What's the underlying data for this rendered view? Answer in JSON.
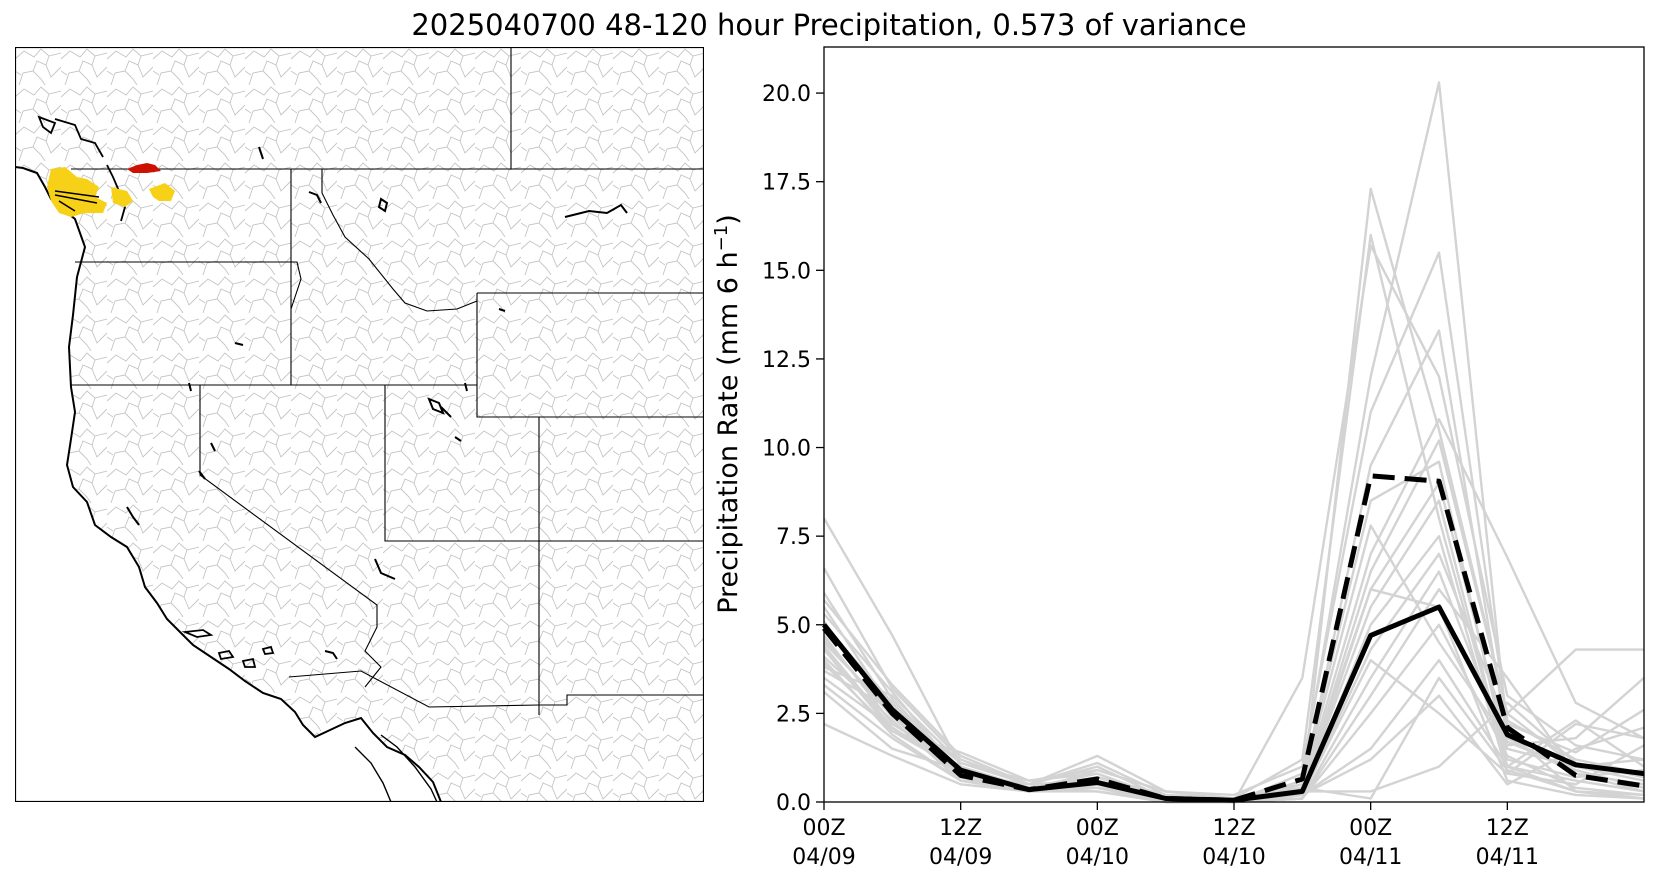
{
  "figure": {
    "title": "2025040700 48-120 hour Precipitation, 0.573 of variance"
  },
  "map": {
    "highlight_colors": {
      "yellow": "#f7d117",
      "red": "#cc1100"
    },
    "state_line_color": "#000000",
    "basin_line_color": "#c0c0c0"
  },
  "chart_data": {
    "type": "line",
    "ylabel": "Precipitation Rate (mm 6 h$^{-1}$)",
    "ylabel_parts": {
      "main": "Precipitation Rate (mm 6 h",
      "sup": "−1",
      "close": ")"
    },
    "xlabel": "",
    "x": [
      0,
      6,
      12,
      18,
      24,
      30,
      36,
      42,
      48,
      54,
      60,
      66,
      72
    ],
    "xlim": [
      0,
      72
    ],
    "ylim": [
      0,
      21.3
    ],
    "xticks": [
      {
        "x": 0,
        "line1": "00Z",
        "line2": "04/09"
      },
      {
        "x": 12,
        "line1": "12Z",
        "line2": "04/09"
      },
      {
        "x": 24,
        "line1": "00Z",
        "line2": "04/10"
      },
      {
        "x": 36,
        "line1": "12Z",
        "line2": "04/10"
      },
      {
        "x": 48,
        "line1": "00Z",
        "line2": "04/11"
      },
      {
        "x": 60,
        "line1": "12Z",
        "line2": "04/11"
      }
    ],
    "yticks": [
      {
        "v": 0,
        "label": "0.0"
      },
      {
        "v": 2.5,
        "label": "2.5"
      },
      {
        "v": 5,
        "label": "5.0"
      },
      {
        "v": 7.5,
        "label": "7.5"
      },
      {
        "v": 10,
        "label": "10.0"
      },
      {
        "v": 12.5,
        "label": "12.5"
      },
      {
        "v": 15,
        "label": "15.0"
      },
      {
        "v": 17.5,
        "label": "17.5"
      },
      {
        "v": 20,
        "label": "20.0"
      }
    ],
    "colors": {
      "members": "#d3d3d3",
      "mean": "#000000",
      "dashed": "#000000"
    },
    "members": [
      [
        8.0,
        4.7,
        1.0,
        0.3,
        0.6,
        0.1,
        0.0,
        0.3,
        17.3,
        10.5,
        2.5,
        1.0,
        0.6
      ],
      [
        6.6,
        3.2,
        1.2,
        0.5,
        1.3,
        0.3,
        0.1,
        1.2,
        16.0,
        8.0,
        1.0,
        0.3,
        0.2
      ],
      [
        5.9,
        2.9,
        0.9,
        0.4,
        0.8,
        0.1,
        0.0,
        3.5,
        15.7,
        12.0,
        3.0,
        1.6,
        1.2
      ],
      [
        5.5,
        2.6,
        1.1,
        0.5,
        1.1,
        0.2,
        0.0,
        0.8,
        12.0,
        20.3,
        2.0,
        0.3,
        0.1
      ],
      [
        5.3,
        3.1,
        0.8,
        0.3,
        0.9,
        0.3,
        0.2,
        1.0,
        11.0,
        15.5,
        2.3,
        1.2,
        0.8
      ],
      [
        5.1,
        2.4,
        0.9,
        0.4,
        0.7,
        0.1,
        0.0,
        0.5,
        9.5,
        13.3,
        1.8,
        0.8,
        0.3
      ],
      [
        4.9,
        2.7,
        0.7,
        0.3,
        0.6,
        0.1,
        0.0,
        0.4,
        7.0,
        10.8,
        6.9,
        2.8,
        1.8
      ],
      [
        4.7,
        2.2,
        1.0,
        0.4,
        0.5,
        0.0,
        0.0,
        0.3,
        6.5,
        10.2,
        2.5,
        4.3,
        4.3
      ],
      [
        4.5,
        2.5,
        0.8,
        0.5,
        0.4,
        0.0,
        0.0,
        0.2,
        6.0,
        9.0,
        1.6,
        1.8,
        3.5
      ],
      [
        4.3,
        2.0,
        1.4,
        0.6,
        0.8,
        0.1,
        0.0,
        0.3,
        5.5,
        8.5,
        1.0,
        2.3,
        1.0
      ],
      [
        4.1,
        2.3,
        0.6,
        0.3,
        0.5,
        0.1,
        0.0,
        0.2,
        5.0,
        7.5,
        0.8,
        0.5,
        1.6
      ],
      [
        3.9,
        2.0,
        0.9,
        0.4,
        0.6,
        0.1,
        0.0,
        0.2,
        4.3,
        7.0,
        2.2,
        1.4,
        2.6
      ],
      [
        3.7,
        2.6,
        0.7,
        0.3,
        0.4,
        0.0,
        0.0,
        0.1,
        3.5,
        6.5,
        1.5,
        1.0,
        1.2
      ],
      [
        3.5,
        2.1,
        0.8,
        0.4,
        0.3,
        0.0,
        0.0,
        0.1,
        3.0,
        6.0,
        3.5,
        0.8,
        0.5
      ],
      [
        3.3,
        1.8,
        0.6,
        0.3,
        0.5,
        0.0,
        0.0,
        0.1,
        2.5,
        5.0,
        1.3,
        0.4,
        0.2
      ],
      [
        3.1,
        1.5,
        0.9,
        0.4,
        0.4,
        0.2,
        0.0,
        0.2,
        1.5,
        4.0,
        1.0,
        0.6,
        0.3
      ],
      [
        2.2,
        1.3,
        0.5,
        0.3,
        0.3,
        0.0,
        0.0,
        0.4,
        0.1,
        3.5,
        0.9,
        0.3,
        0.1
      ],
      [
        5.0,
        2.8,
        0.8,
        0.4,
        0.5,
        0.1,
        0.0,
        0.2,
        4.0,
        2.5,
        0.8,
        2.2,
        1.8
      ],
      [
        4.6,
        2.4,
        0.7,
        0.5,
        0.6,
        0.0,
        0.0,
        0.3,
        0.3,
        1.0,
        2.8,
        1.1,
        0.7
      ],
      [
        3.8,
        3.0,
        1.1,
        0.6,
        0.9,
        0.3,
        0.1,
        0.5,
        7.8,
        4.5,
        1.7,
        0.9,
        0.4
      ],
      [
        4.4,
        2.1,
        0.9,
        0.3,
        0.7,
        0.2,
        0.1,
        0.4,
        6.0,
        5.5,
        0.6,
        0.2,
        0.1
      ],
      [
        5.7,
        3.3,
        1.3,
        0.5,
        1.0,
        0.1,
        0.0,
        0.6,
        8.5,
        9.6,
        1.2,
        0.7,
        0.9
      ],
      [
        4.0,
        1.9,
        0.6,
        0.4,
        0.4,
        0.1,
        0.0,
        0.2,
        1.2,
        3.0,
        0.5,
        1.5,
        2.1
      ]
    ],
    "mean": [
      5.0,
      2.6,
      0.9,
      0.35,
      0.55,
      0.1,
      0.05,
      0.3,
      4.7,
      5.5,
      1.9,
      1.05,
      0.8
    ],
    "dashed": [
      4.9,
      2.5,
      0.75,
      0.35,
      0.65,
      0.1,
      0.05,
      0.65,
      9.2,
      9.05,
      2.1,
      0.75,
      0.45
    ]
  }
}
